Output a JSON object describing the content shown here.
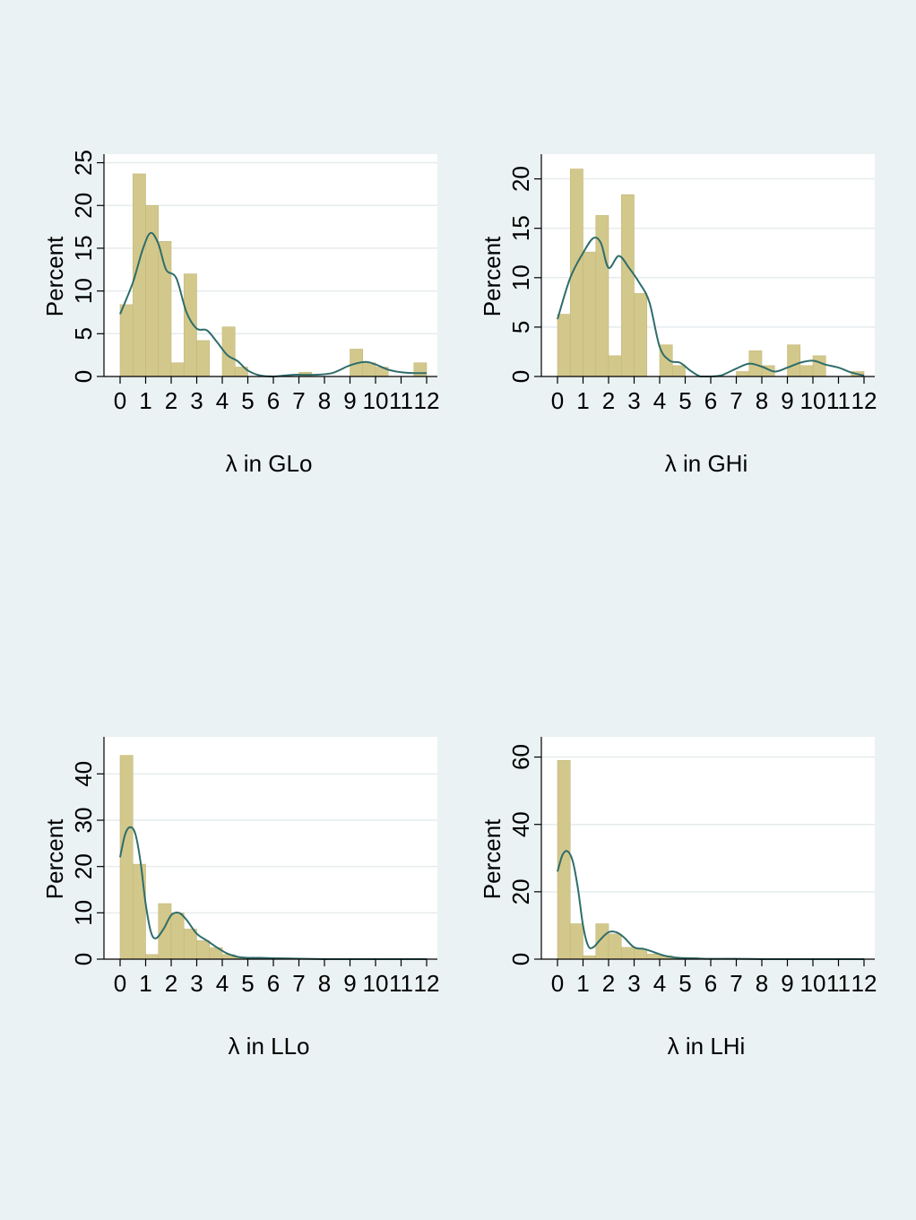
{
  "colors": {
    "background": "#eaf2f3",
    "plot_background": "#ffffff",
    "bar_fill": "#d3c88c",
    "bar_stroke": "#c4b878",
    "density_line": "#2f6d6a",
    "grid": "#e6ecee",
    "axis": "#000000"
  },
  "chart_data": [
    {
      "type": "bar",
      "panel": "top-left",
      "title": "",
      "xlabel": "λ in GLo",
      "ylabel": "Percent",
      "xlim": [
        0,
        12
      ],
      "ylim": [
        0,
        26
      ],
      "x_ticks": [
        0,
        1,
        2,
        3,
        4,
        5,
        6,
        7,
        8,
        9,
        10,
        11,
        12
      ],
      "x_tick_labels": [
        "0",
        "1",
        "2",
        "3",
        "4",
        "5",
        "6",
        "7",
        "8",
        "9",
        "10",
        "11",
        "12"
      ],
      "y_ticks": [
        0,
        5,
        10,
        15,
        20,
        25
      ],
      "y_tick_labels": [
        "0",
        "5",
        "10",
        "15",
        "20",
        "25"
      ],
      "grid": true,
      "bin_width": 0.5,
      "bins_start": [
        0.0,
        0.5,
        1.0,
        1.5,
        2.0,
        2.5,
        3.0,
        3.5,
        4.0,
        4.5,
        5.0,
        5.5,
        6.0,
        6.5,
        7.0,
        7.5,
        8.0,
        8.5,
        9.0,
        9.5,
        10.0,
        10.5,
        11.0,
        11.5
      ],
      "values": [
        8.4,
        23.7,
        20.0,
        15.8,
        1.6,
        12.0,
        4.2,
        0,
        5.8,
        1.1,
        0,
        0,
        0,
        0,
        0.5,
        0,
        0,
        0,
        3.2,
        1.6,
        1.1,
        0,
        0,
        1.6
      ],
      "density": {
        "name": "",
        "x": [
          0.0,
          0.5,
          0.9,
          1.2,
          1.5,
          1.8,
          2.2,
          2.6,
          3.0,
          3.4,
          3.8,
          4.2,
          4.6,
          5.0,
          5.5,
          6.0,
          6.8,
          7.6,
          8.3,
          9.0,
          9.6,
          10.0,
          10.5,
          11.0,
          11.5,
          12.0
        ],
        "y": [
          7.3,
          11.0,
          15.0,
          16.8,
          15.5,
          12.5,
          11.5,
          7.5,
          5.6,
          5.4,
          4.0,
          2.5,
          1.8,
          0.7,
          0.1,
          0,
          0.2,
          0.2,
          0.4,
          1.3,
          1.7,
          1.4,
          0.8,
          0.5,
          0.4,
          0.4
        ]
      }
    },
    {
      "type": "bar",
      "panel": "top-right",
      "title": "",
      "xlabel": "λ in GHi",
      "ylabel": "Percent",
      "xlim": [
        0,
        12
      ],
      "ylim": [
        0,
        22.5
      ],
      "x_ticks": [
        0,
        1,
        2,
        3,
        4,
        5,
        6,
        7,
        8,
        9,
        10,
        11,
        12
      ],
      "x_tick_labels": [
        "0",
        "1",
        "2",
        "3",
        "4",
        "5",
        "6",
        "7",
        "8",
        "9",
        "10",
        "11",
        "12"
      ],
      "y_ticks": [
        0,
        5,
        10,
        15,
        20
      ],
      "y_tick_labels": [
        "0",
        "5",
        "10",
        "15",
        "20"
      ],
      "grid": true,
      "bin_width": 0.5,
      "bins_start": [
        0.0,
        0.5,
        1.0,
        1.5,
        2.0,
        2.5,
        3.0,
        3.5,
        4.0,
        4.5,
        5.0,
        5.5,
        6.0,
        6.5,
        7.0,
        7.5,
        8.0,
        8.5,
        9.0,
        9.5,
        10.0,
        10.5,
        11.0,
        11.5
      ],
      "values": [
        6.3,
        21.0,
        12.6,
        16.3,
        2.1,
        18.4,
        8.4,
        0,
        3.2,
        1.1,
        0,
        0,
        0,
        0,
        0.5,
        2.6,
        1.1,
        0,
        3.2,
        1.1,
        2.1,
        0,
        0,
        0.5
      ],
      "density": {
        "name": "",
        "x": [
          0.0,
          0.5,
          1.0,
          1.4,
          1.7,
          2.0,
          2.4,
          2.8,
          3.2,
          3.6,
          4.0,
          4.4,
          4.8,
          5.2,
          5.6,
          6.0,
          6.4,
          7.0,
          7.5,
          8.0,
          8.5,
          9.0,
          9.5,
          10.0,
          10.5,
          11.0,
          11.5,
          12.0
        ],
        "y": [
          5.8,
          10.0,
          12.5,
          14.0,
          13.5,
          11.0,
          12.2,
          11.0,
          9.5,
          7.5,
          3.0,
          1.6,
          1.4,
          0.6,
          0,
          0,
          0.1,
          0.8,
          1.3,
          1.0,
          0.5,
          0.9,
          1.4,
          1.6,
          1.2,
          0.9,
          0.4,
          0.1
        ]
      }
    },
    {
      "type": "bar",
      "panel": "bottom-left",
      "title": "",
      "xlabel": "λ in LLo",
      "ylabel": "Percent",
      "xlim": [
        0,
        12
      ],
      "ylim": [
        0,
        48
      ],
      "x_ticks": [
        0,
        1,
        2,
        3,
        4,
        5,
        6,
        7,
        8,
        9,
        10,
        11,
        12
      ],
      "x_tick_labels": [
        "0",
        "1",
        "2",
        "3",
        "4",
        "5",
        "6",
        "7",
        "8",
        "9",
        "10",
        "11",
        "12"
      ],
      "y_ticks": [
        0,
        10,
        20,
        30,
        40
      ],
      "y_tick_labels": [
        "0",
        "10",
        "20",
        "30",
        "40"
      ],
      "grid": true,
      "bin_width": 0.5,
      "bins_start": [
        0.0,
        0.5,
        1.0,
        1.5,
        2.0,
        2.5,
        3.0,
        3.5,
        4.0,
        4.5,
        5.0,
        5.5,
        6.0,
        6.5,
        7.0,
        7.5,
        8.0,
        8.5,
        9.0,
        9.5,
        10.0,
        10.5,
        11.0,
        11.5
      ],
      "values": [
        44.0,
        20.5,
        1.0,
        12.0,
        10.0,
        6.5,
        4.0,
        2.5,
        1.0,
        0.3,
        0.3,
        0.3,
        0.2,
        0,
        0,
        0,
        0,
        0,
        0,
        0,
        0,
        0,
        0,
        0
      ],
      "density": {
        "name": "",
        "x": [
          0.0,
          0.2,
          0.4,
          0.6,
          0.8,
          1.0,
          1.2,
          1.4,
          1.7,
          2.0,
          2.3,
          2.6,
          3.0,
          3.4,
          3.8,
          4.2,
          4.6,
          5.0,
          5.5,
          6.0,
          7.0,
          8.0,
          9.0,
          10.0,
          11.0,
          12.0
        ],
        "y": [
          22.0,
          27.0,
          28.5,
          27.0,
          21.0,
          12.0,
          6.0,
          4.5,
          6.5,
          9.5,
          10.0,
          8.5,
          5.5,
          4.0,
          2.5,
          1.2,
          0.5,
          0.3,
          0.3,
          0.2,
          0.1,
          0,
          0,
          0,
          0,
          0
        ]
      }
    },
    {
      "type": "bar",
      "panel": "bottom-right",
      "title": "",
      "xlabel": "λ in LHi",
      "ylabel": "Percent",
      "xlim": [
        0,
        12
      ],
      "ylim": [
        0,
        66
      ],
      "x_ticks": [
        0,
        1,
        2,
        3,
        4,
        5,
        6,
        7,
        8,
        9,
        10,
        11,
        12
      ],
      "x_tick_labels": [
        "0",
        "1",
        "2",
        "3",
        "4",
        "5",
        "6",
        "7",
        "8",
        "9",
        "10",
        "11",
        "12"
      ],
      "y_ticks": [
        0,
        20,
        40,
        60
      ],
      "y_tick_labels": [
        "0",
        "20",
        "40",
        "60"
      ],
      "grid": true,
      "bin_width": 0.5,
      "bins_start": [
        0.0,
        0.5,
        1.0,
        1.5,
        2.0,
        2.5,
        3.0,
        3.5,
        4.0,
        4.5,
        5.0,
        5.5,
        6.0,
        6.5,
        7.0,
        7.5,
        8.0,
        8.5,
        9.0,
        9.5,
        10.0,
        10.5,
        11.0,
        11.5
      ],
      "values": [
        59.0,
        10.5,
        1.0,
        10.5,
        7.5,
        3.5,
        3.0,
        1.5,
        1.0,
        0.5,
        0.5,
        0,
        0,
        0.3,
        0,
        0,
        0,
        0,
        0,
        0,
        0,
        0,
        0,
        0
      ],
      "density": {
        "name": "",
        "x": [
          0.0,
          0.2,
          0.4,
          0.6,
          0.8,
          1.0,
          1.2,
          1.4,
          1.7,
          2.0,
          2.3,
          2.6,
          3.0,
          3.4,
          3.8,
          4.2,
          4.6,
          5.0,
          5.5,
          6.0,
          7.0,
          8.0,
          9.0,
          10.0,
          11.0,
          12.0
        ],
        "y": [
          26.0,
          31.0,
          32.0,
          29.0,
          21.0,
          10.0,
          4.0,
          3.5,
          6.0,
          8.0,
          8.0,
          6.5,
          3.5,
          3.0,
          2.0,
          1.0,
          0.5,
          0.3,
          0.2,
          0.1,
          0.1,
          0,
          0,
          0,
          0,
          0
        ]
      }
    }
  ]
}
